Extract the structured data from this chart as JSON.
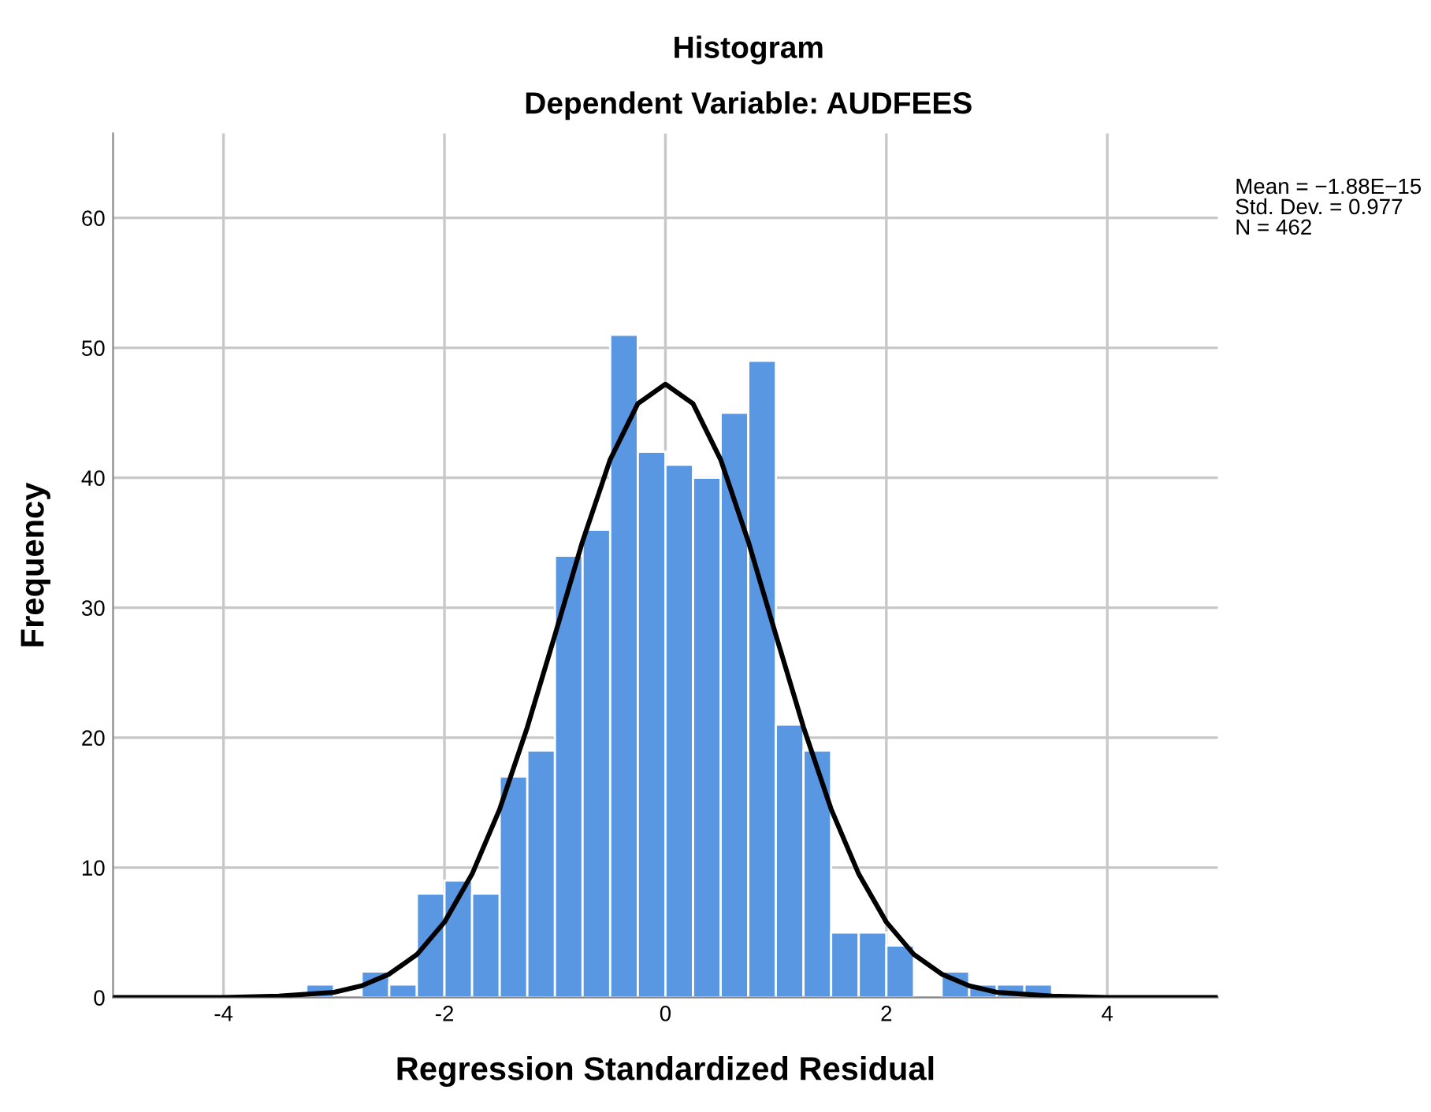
{
  "chart_data": {
    "type": "histogram",
    "title": "Histogram",
    "subtitle": "Dependent Variable: AUDFEES",
    "xlabel": "Regression Standardized Residual",
    "ylabel": "Frequency",
    "bins": [
      -3.25,
      -3.0,
      -2.75,
      -2.5,
      -2.25,
      -2.0,
      -1.75,
      -1.5,
      -1.25,
      -1.0,
      -0.75,
      -0.5,
      -0.25,
      0,
      0.25,
      0.5,
      0.75,
      1.0,
      1.25,
      1.5,
      1.75,
      2.0,
      2.25,
      2.5,
      2.75,
      3.0,
      3.25,
      3.5
    ],
    "values": [
      1,
      0,
      2,
      1,
      8,
      9,
      8,
      17,
      19,
      34,
      36,
      51,
      42,
      41,
      40,
      45,
      49,
      21,
      19,
      5,
      5,
      4,
      0,
      2,
      1,
      1,
      1
    ],
    "color": "#5a97e3",
    "series": [
      {
        "type": "line",
        "color": "#000000",
        "x": [
          -5,
          -4,
          -3.5,
          -3,
          -2.75,
          -2.5,
          -2.25,
          -2,
          -1.75,
          -1.5,
          -1.25,
          -1,
          -0.75,
          -0.5,
          -0.25,
          0,
          0.25,
          0.5,
          0.75,
          1,
          1.25,
          1.5,
          1.75,
          2,
          2.25,
          2.5,
          2.75,
          3,
          3.5,
          4,
          5
        ],
        "values": [
          0,
          0,
          0.1,
          0.4,
          0.9,
          1.8,
          3.3,
          5.8,
          9.5,
          14.5,
          20.8,
          27.9,
          35.1,
          41.4,
          45.7,
          47.2,
          45.7,
          41.4,
          35.1,
          27.9,
          20.8,
          14.5,
          9.5,
          5.8,
          3.3,
          1.8,
          0.9,
          0.4,
          0.1,
          0,
          0
        ]
      }
    ],
    "xlim": [
      -5,
      5
    ],
    "ylim": [
      0,
      66.5
    ],
    "xticks": [
      -4,
      -2,
      0,
      2,
      4
    ],
    "yticks": [
      0,
      10,
      20,
      30,
      40,
      50,
      60
    ],
    "grid": true,
    "annotations": [
      "Mean = −1.88E−15\nStd. Dev. = 0.977\nN = 462"
    ]
  }
}
